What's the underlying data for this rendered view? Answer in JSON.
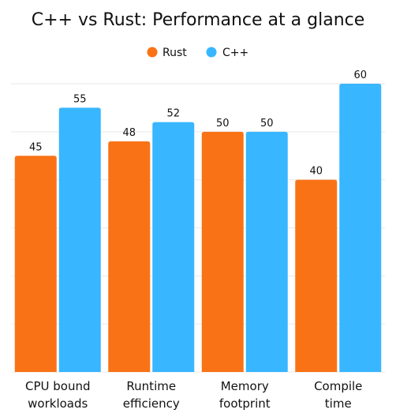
{
  "chart_data": {
    "type": "bar",
    "title": "C++ vs Rust: Performance at a glance",
    "categories": [
      [
        "CPU bound",
        "workloads"
      ],
      [
        "Runtime",
        "efficiency"
      ],
      [
        "Memory",
        "footprint"
      ],
      [
        "Compile",
        "time"
      ]
    ],
    "series": [
      {
        "name": "Rust",
        "values": [
          45,
          48,
          50,
          40
        ],
        "color": "#F97316"
      },
      {
        "name": "C++",
        "values": [
          55,
          52,
          50,
          60
        ],
        "color": "#38B6FF"
      }
    ],
    "ylim": [
      0,
      60
    ],
    "grid": true,
    "legend": "top-center",
    "xlabel": "",
    "ylabel": ""
  }
}
